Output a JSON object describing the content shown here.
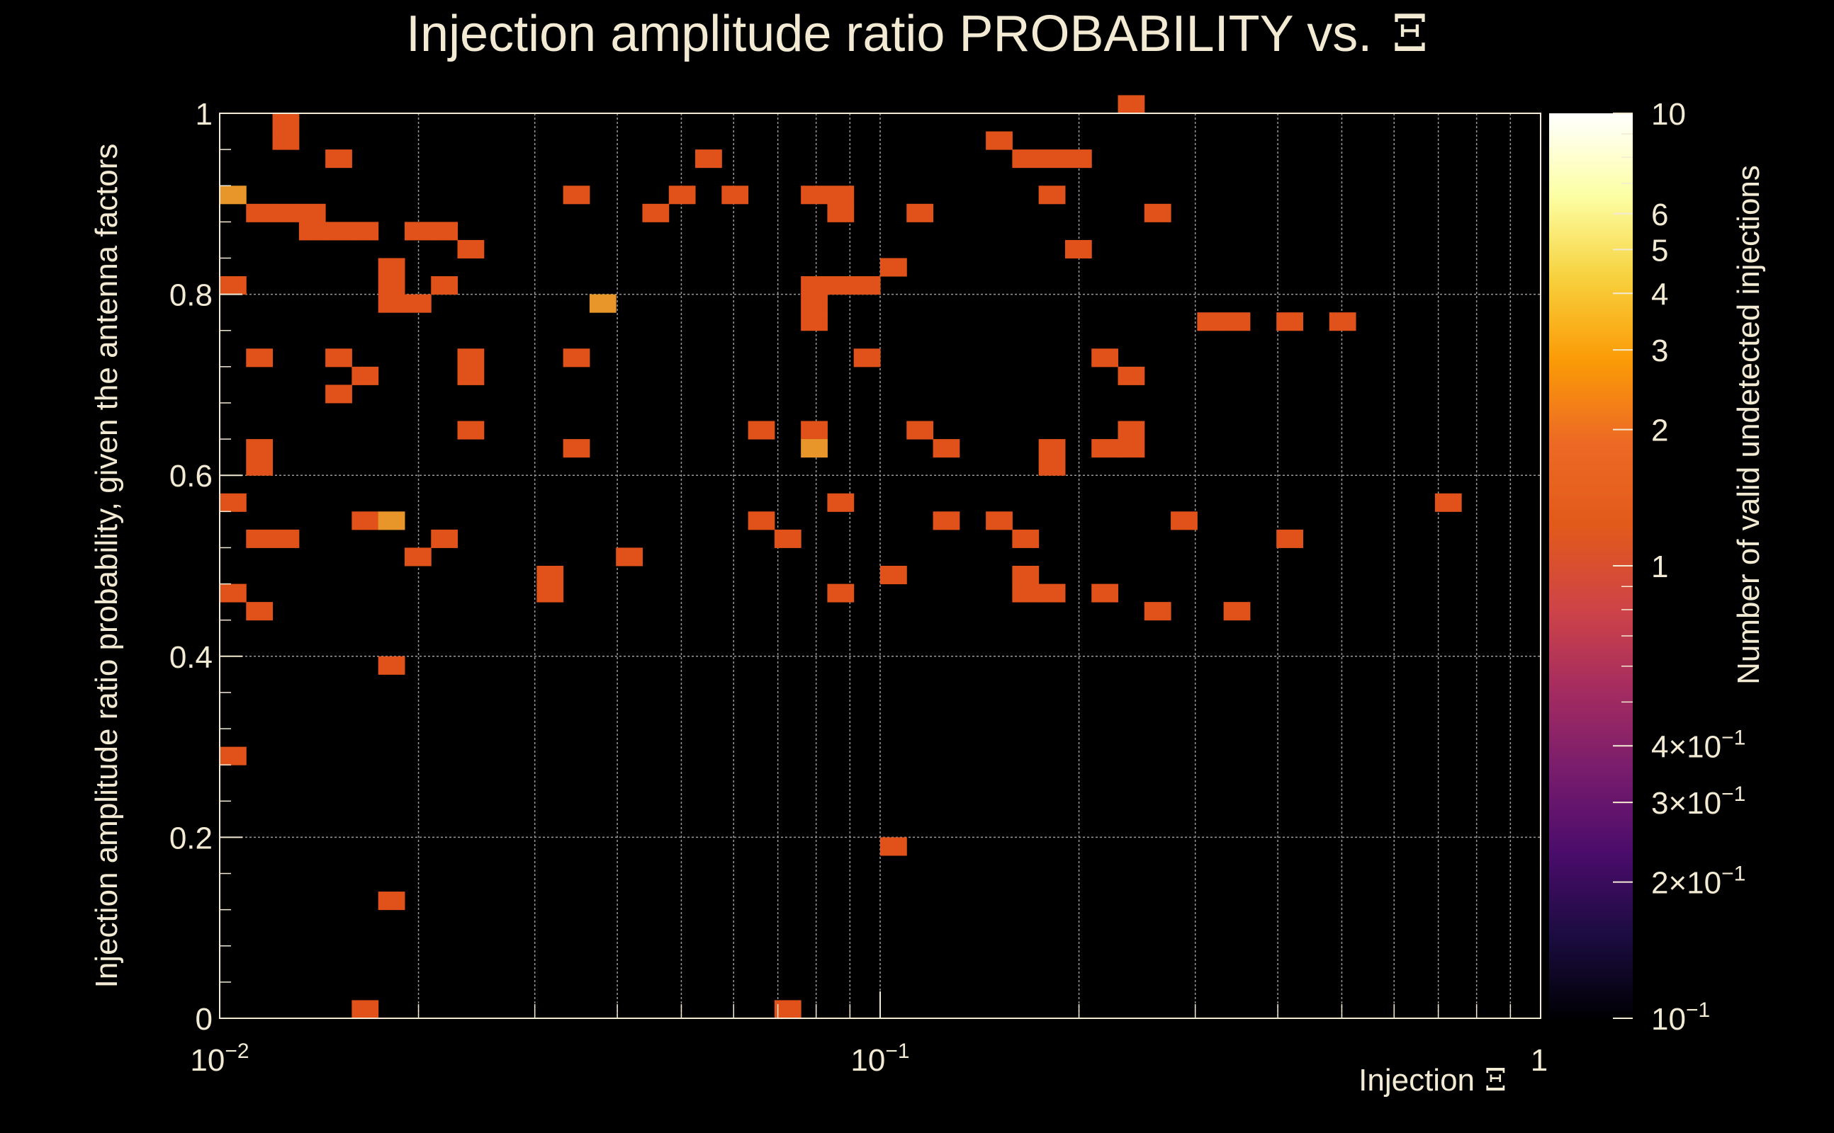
{
  "chart_data": {
    "type": "heatmap",
    "title": "Injection amplitude ratio PROBABILITY vs.",
    "title_symbol": "Ξ",
    "xlabel": "Injection",
    "xlabel_symbol": "Ξ",
    "ylabel": "Injection amplitude ratio probability, given the antenna factors",
    "zlabel": "Number of valid undetected injections",
    "x_scale": "log",
    "xlim": [
      0.01,
      1
    ],
    "ylim": [
      0,
      1
    ],
    "zlim": [
      0.1,
      10
    ],
    "x_bins": 50,
    "y_bins": 50,
    "x_ticks": [
      {
        "base": "10",
        "exp": "−2"
      },
      {
        "base": "10",
        "exp": "−1"
      },
      {
        "base": "1",
        "exp": ""
      }
    ],
    "y_ticks": [
      "0",
      "0.2",
      "0.4",
      "0.6",
      "0.8",
      "1"
    ],
    "z_ticks": [
      {
        "base": "10",
        "exp": "",
        "value": 10
      },
      {
        "base": "6",
        "exp": "",
        "value": 6
      },
      {
        "base": "5",
        "exp": "",
        "value": 5
      },
      {
        "base": "4",
        "exp": "",
        "value": 4
      },
      {
        "base": "3",
        "exp": "",
        "value": 3
      },
      {
        "base": "2",
        "exp": "",
        "value": 2
      },
      {
        "base": "1",
        "exp": "",
        "value": 1
      },
      {
        "base": "4×10",
        "exp": "−1",
        "value": 0.4
      },
      {
        "base": "3×10",
        "exp": "−1",
        "value": 0.3
      },
      {
        "base": "2×10",
        "exp": "−1",
        "value": 0.2
      },
      {
        "base": "10",
        "exp": "−1",
        "value": 0.1
      }
    ],
    "colormap": [
      "#000004",
      "#1b0c41",
      "#4a0c6b",
      "#781c6d",
      "#a52c60",
      "#cf4446",
      "#e25a1a",
      "#ed6925",
      "#fb9b06",
      "#f7d13d",
      "#fcffa4",
      "#ffffff"
    ],
    "cells_note": "[x_bin, y_bin, count]",
    "cells": [
      [
        0,
        37,
        2
      ],
      [
        0,
        36,
        1
      ],
      [
        0,
        33,
        1
      ],
      [
        0,
        29,
        1
      ],
      [
        0,
        24,
        1
      ],
      [
        0,
        19,
        1
      ],
      [
        1,
        48,
        1
      ],
      [
        1,
        47,
        1
      ],
      [
        1,
        36,
        1
      ],
      [
        1,
        32,
        1
      ],
      [
        1,
        26,
        1
      ],
      [
        1,
        25,
        1
      ],
      [
        1,
        23,
        1
      ],
      [
        1,
        18,
        1
      ],
      [
        2,
        36,
        1
      ],
      [
        2,
        32,
        1
      ],
      [
        3,
        35,
        1
      ],
      [
        3,
        23,
        1
      ],
      [
        4,
        35,
        1
      ],
      [
        4,
        32,
        1
      ],
      [
        4,
        30,
        1
      ],
      [
        4,
        23,
        1
      ],
      [
        5,
        46,
        1
      ],
      [
        5,
        35,
        1
      ],
      [
        5,
        29,
        1
      ],
      [
        6,
        41,
        1
      ],
      [
        6,
        40,
        1
      ],
      [
        6,
        39,
        1
      ],
      [
        6,
        38,
        1
      ],
      [
        6,
        35,
        1
      ],
      [
        6,
        31,
        1
      ],
      [
        6,
        30,
        1
      ],
      [
        6,
        27,
        1
      ],
      [
        6,
        26,
        1
      ],
      [
        6,
        1,
        1
      ],
      [
        7,
        40,
        1
      ],
      [
        7,
        39,
        1
      ],
      [
        7,
        30,
        1
      ],
      [
        7,
        26,
        1
      ],
      [
        7,
        17,
        1
      ],
      [
        7,
        12,
        1
      ],
      [
        7,
        8,
        1
      ],
      [
        8,
        38,
        1
      ],
      [
        8,
        36,
        1
      ],
      [
        8,
        26,
        1
      ],
      [
        9,
        37,
        1
      ],
      [
        9,
        33,
        1
      ],
      [
        9,
        29,
        1
      ],
      [
        9,
        28,
        1
      ],
      [
        9,
        23,
        1
      ],
      [
        10,
        26,
        1
      ],
      [
        11,
        45,
        1
      ],
      [
        11,
        33,
        1
      ],
      [
        11,
        21,
        1
      ],
      [
        11,
        20,
        1
      ],
      [
        12,
        40,
        1
      ],
      [
        12,
        38,
        1
      ],
      [
        12,
        29,
        1
      ],
      [
        12,
        26,
        1
      ],
      [
        12,
        25,
        1
      ],
      [
        12,
        20,
        1
      ],
      [
        12,
        19,
        1
      ],
      [
        14,
        38,
        1
      ],
      [
        14,
        35,
        1
      ],
      [
        14,
        29,
        1
      ],
      [
        14,
        24,
        1
      ],
      [
        14,
        23,
        1
      ],
      [
        14,
        21,
        1
      ],
      [
        15,
        33,
        1
      ],
      [
        15,
        23,
        1
      ],
      [
        16,
        39,
        1
      ],
      [
        16,
        38,
        1
      ],
      [
        16,
        35,
        1
      ],
      [
        16,
        27,
        1
      ],
      [
        16,
        24,
        1
      ],
      [
        16,
        22,
        1
      ],
      [
        16,
        20,
        1
      ],
      [
        16,
        11,
        1
      ],
      [
        16,
        10,
        1
      ],
      [
        16,
        1,
        1
      ],
      [
        17,
        39,
        1
      ],
      [
        17,
        21,
        1
      ],
      [
        17,
        20,
        1
      ],
      [
        18,
        38,
        1
      ],
      [
        18,
        26,
        1
      ],
      [
        18,
        25,
        1
      ],
      [
        18,
        21,
        1
      ],
      [
        19,
        38,
        1
      ],
      [
        19,
        22,
        1
      ],
      [
        19,
        15,
        1
      ],
      [
        19,
        14,
        1
      ],
      [
        19,
        13,
        1
      ],
      [
        20,
        40,
        1
      ],
      [
        20,
        35,
        1
      ],
      [
        20,
        26,
        1
      ],
      [
        20,
        25,
        1
      ],
      [
        20,
        19,
        1
      ],
      [
        20,
        15,
        1
      ],
      [
        21,
        38,
        1
      ],
      [
        21,
        26,
        1
      ],
      [
        21,
        24,
        1
      ],
      [
        21,
        23,
        1
      ],
      [
        21,
        20,
        1
      ],
      [
        21,
        17,
        1
      ],
      [
        21,
        16,
        1
      ],
      [
        21,
        1,
        1
      ],
      [
        22,
        43,
        1
      ],
      [
        22,
        42,
        1
      ],
      [
        22,
        38,
        1
      ],
      [
        22,
        36,
        1
      ],
      [
        22,
        35,
        1
      ],
      [
        22,
        34,
        1
      ],
      [
        22,
        33,
        1
      ],
      [
        22,
        32,
        1
      ],
      [
        22,
        31,
        1
      ],
      [
        22,
        30,
        1
      ],
      [
        22,
        29,
        1
      ],
      [
        22,
        22,
        1
      ],
      [
        22,
        21,
        2
      ],
      [
        22,
        1,
        1
      ],
      [
        23,
        33,
        1
      ],
      [
        23,
        32,
        1
      ],
      [
        23,
        31,
        1
      ],
      [
        23,
        30,
        1
      ],
      [
        23,
        29,
        1
      ],
      [
        24,
        33,
        1
      ],
      [
        24,
        32,
        1
      ],
      [
        26,
        42,
        1
      ],
      [
        26,
        41,
        1
      ],
      [
        26,
        29,
        1
      ],
      [
        26,
        28,
        1
      ],
      [
        26,
        19,
        1
      ],
      [
        26,
        16,
        1
      ],
      [
        27,
        40,
        1
      ],
      [
        27,
        38,
        1
      ],
      [
        27,
        21,
        1
      ],
      [
        27,
        19,
        1
      ],
      [
        27,
        17,
        1
      ],
      [
        27,
        16,
        1
      ],
      [
        27,
        7,
        1
      ],
      [
        28,
        42,
        1
      ],
      [
        28,
        41,
        1
      ],
      [
        28,
        40,
        1
      ],
      [
        28,
        39,
        1
      ],
      [
        28,
        38,
        1
      ],
      [
        28,
        36,
        1
      ],
      [
        28,
        34,
        1
      ],
      [
        28,
        22,
        1
      ],
      [
        28,
        20,
        1
      ],
      [
        28,
        17,
        1
      ],
      [
        28,
        12,
        1
      ],
      [
        28,
        11,
        1
      ],
      [
        28,
        10,
        1
      ],
      [
        28,
        9,
        1
      ],
      [
        28,
        8,
        1
      ],
      [
        28,
        7,
        1
      ],
      [
        28,
        6,
        1
      ],
      [
        28,
        5,
        1
      ],
      [
        28,
        4,
        1
      ],
      [
        28,
        3,
        1
      ],
      [
        28,
        2,
        1
      ],
      [
        28,
        1,
        1
      ],
      [
        28,
        0,
        1
      ],
      [
        30,
        48,
        1
      ],
      [
        30,
        25,
        1
      ],
      [
        30,
        24,
        1
      ],
      [
        30,
        22,
        1
      ],
      [
        30,
        19,
        1
      ],
      [
        30,
        18,
        1
      ],
      [
        30,
        17,
        1
      ],
      [
        30,
        16,
        1
      ],
      [
        30,
        15,
        1
      ],
      [
        30,
        14,
        1
      ],
      [
        30,
        13,
        1
      ],
      [
        30,
        12,
        1
      ],
      [
        30,
        11,
        1
      ],
      [
        30,
        10,
        1
      ],
      [
        30,
        9,
        1
      ],
      [
        30,
        8,
        1
      ],
      [
        30,
        7,
        1
      ],
      [
        30,
        6,
        1
      ],
      [
        30,
        5,
        1
      ],
      [
        30,
        4,
        1
      ],
      [
        30,
        3,
        1
      ],
      [
        30,
        2,
        1
      ],
      [
        30,
        1,
        1
      ],
      [
        30,
        0,
        1
      ]
    ],
    "sparse_cells_note": "[x_bin, y_bin, count] — the rendered set (subset of plotted bins)",
    "rendered_cells": [
      [
        2,
        49,
        1
      ],
      [
        2,
        48,
        1
      ],
      [
        4,
        47,
        1
      ],
      [
        0,
        45,
        2
      ],
      [
        1,
        44,
        1
      ],
      [
        2,
        44,
        1
      ],
      [
        3,
        44,
        1
      ],
      [
        3,
        43,
        1
      ],
      [
        4,
        43,
        1
      ],
      [
        5,
        43,
        1
      ],
      [
        7,
        43,
        1
      ],
      [
        8,
        43,
        1
      ],
      [
        9,
        42,
        1
      ],
      [
        8,
        40,
        1
      ],
      [
        6,
        41,
        1
      ],
      [
        6,
        40,
        1
      ],
      [
        6,
        39,
        1
      ],
      [
        7,
        39,
        1
      ],
      [
        0,
        40,
        1
      ],
      [
        13,
        45,
        1
      ],
      [
        17,
        45,
        1
      ],
      [
        18,
        47,
        1
      ],
      [
        19,
        45,
        1
      ],
      [
        16,
        44,
        1
      ],
      [
        22,
        45,
        1
      ],
      [
        23,
        45,
        1
      ],
      [
        23,
        44,
        1
      ],
      [
        25,
        41,
        1
      ],
      [
        22,
        40,
        1
      ],
      [
        22,
        39,
        1
      ],
      [
        22,
        38,
        1
      ],
      [
        23,
        40,
        1
      ],
      [
        24,
        40,
        1
      ],
      [
        14,
        39,
        2
      ],
      [
        29,
        48,
        1
      ],
      [
        30,
        47,
        1
      ],
      [
        31,
        47,
        1
      ],
      [
        32,
        47,
        1
      ],
      [
        31,
        45,
        1
      ],
      [
        26,
        44,
        1
      ],
      [
        32,
        42,
        1
      ],
      [
        35,
        44,
        1
      ],
      [
        34,
        50,
        1
      ],
      [
        37,
        38,
        1
      ],
      [
        38,
        38,
        1
      ],
      [
        40,
        38,
        1
      ],
      [
        42,
        38,
        1
      ],
      [
        1,
        36,
        1
      ],
      [
        4,
        36,
        1
      ],
      [
        5,
        35,
        1
      ],
      [
        4,
        34,
        1
      ],
      [
        9,
        36,
        1
      ],
      [
        9,
        35,
        1
      ],
      [
        13,
        36,
        1
      ],
      [
        24,
        36,
        1
      ],
      [
        33,
        36,
        1
      ],
      [
        34,
        35,
        1
      ],
      [
        9,
        32,
        1
      ],
      [
        22,
        32,
        1
      ],
      [
        22,
        31,
        2
      ],
      [
        1,
        31,
        1
      ],
      [
        1,
        30,
        1
      ],
      [
        13,
        31,
        1
      ],
      [
        20,
        32,
        1
      ],
      [
        26,
        32,
        1
      ],
      [
        27,
        31,
        1
      ],
      [
        31,
        31,
        1
      ],
      [
        31,
        30,
        1
      ],
      [
        33,
        31,
        1
      ],
      [
        34,
        31,
        1
      ],
      [
        34,
        32,
        1
      ],
      [
        0,
        28,
        1
      ],
      [
        5,
        27,
        1
      ],
      [
        23,
        28,
        1
      ],
      [
        27,
        27,
        1
      ],
      [
        36,
        27,
        1
      ],
      [
        46,
        28,
        1
      ],
      [
        1,
        26,
        1
      ],
      [
        2,
        26,
        1
      ],
      [
        6,
        27,
        2
      ],
      [
        7,
        25,
        1
      ],
      [
        8,
        26,
        1
      ],
      [
        15,
        25,
        1
      ],
      [
        20,
        27,
        1
      ],
      [
        21,
        26,
        1
      ],
      [
        29,
        27,
        1
      ],
      [
        30,
        26,
        1
      ],
      [
        40,
        26,
        1
      ],
      [
        12,
        24,
        1
      ],
      [
        12,
        23,
        1
      ],
      [
        25,
        24,
        1
      ],
      [
        30,
        24,
        1
      ],
      [
        33,
        23,
        1
      ],
      [
        0,
        23,
        1
      ],
      [
        1,
        22,
        1
      ],
      [
        23,
        23,
        1
      ],
      [
        30,
        23,
        1
      ],
      [
        31,
        23,
        1
      ],
      [
        35,
        22,
        1
      ],
      [
        38,
        22,
        1
      ],
      [
        6,
        19,
        1
      ],
      [
        0,
        14,
        1
      ],
      [
        25,
        9,
        1
      ],
      [
        6,
        6,
        1
      ],
      [
        5,
        0,
        1
      ],
      [
        21,
        0,
        1
      ]
    ]
  }
}
